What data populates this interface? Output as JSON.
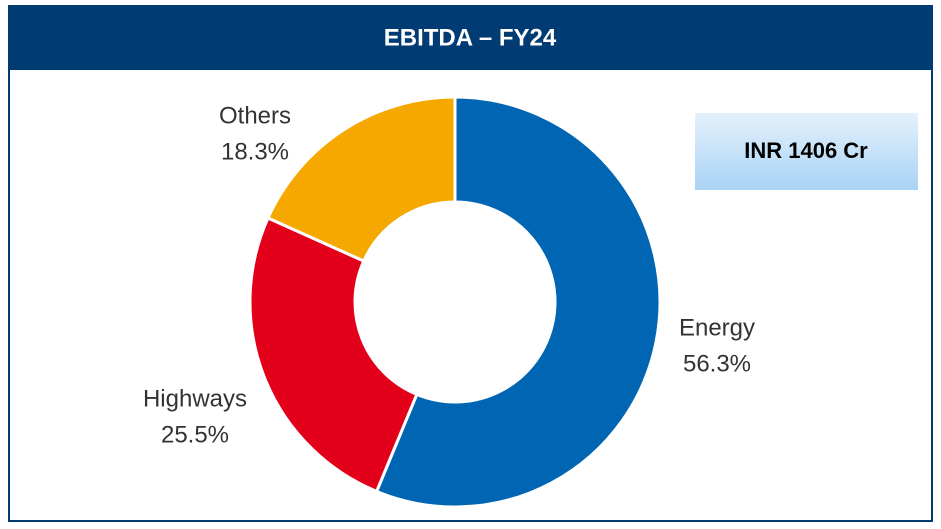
{
  "chart_data": {
    "type": "donut",
    "title": "EBITDA – FY24",
    "categories": [
      "Energy",
      "Highways",
      "Others"
    ],
    "values": [
      56.3,
      25.5,
      18.3
    ],
    "value_labels": [
      "56.3%",
      "25.5%",
      "18.3%"
    ],
    "colors": [
      "#0066b3",
      "#e2001a",
      "#f5a800"
    ],
    "annotation": "INR 1406 Cr"
  }
}
